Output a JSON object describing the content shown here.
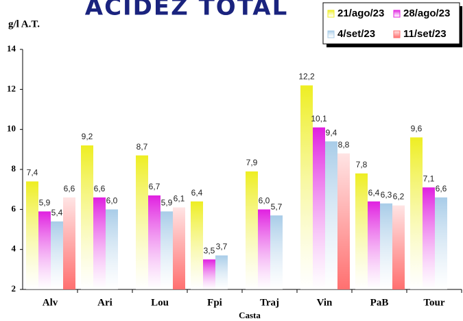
{
  "chart_data": {
    "type": "bar",
    "title": "ACIDEZ TOTAL",
    "y_label": "g/l A.T.",
    "x_label": "Casta",
    "categories": [
      "Alv",
      "Ari",
      "Lou",
      "Fpi",
      "Traj",
      "Vin",
      "PaB",
      "Tour"
    ],
    "series": [
      {
        "name": "21/ago/23",
        "color": "#eeee22",
        "values": [
          7.4,
          9.2,
          8.7,
          6.4,
          7.9,
          12.2,
          7.8,
          9.6
        ],
        "value_labels": [
          "7,4",
          "9,2",
          "8,7",
          "6,4",
          "7,9",
          "12,2",
          "7,8",
          "9,6"
        ]
      },
      {
        "name": "28/ago/23",
        "color": "#e020e0",
        "values": [
          5.9,
          6.6,
          6.7,
          3.5,
          6.0,
          10.1,
          6.4,
          7.1
        ],
        "value_labels": [
          "5,9",
          "6,6",
          "6,7",
          "3,5",
          "6,0",
          "10,1",
          "6,4",
          "7,1"
        ]
      },
      {
        "name": "4/set/23",
        "color": "#a8cce8",
        "values": [
          5.4,
          6.0,
          5.9,
          3.7,
          5.7,
          9.4,
          6.3,
          6.6
        ],
        "value_labels": [
          "5,4",
          "6,0",
          "5,9",
          "3,7",
          "5,7",
          "9,4",
          "6,3",
          "6,6"
        ]
      },
      {
        "name": "11/set/23",
        "color": "#ff7070",
        "values": [
          6.6,
          null,
          6.1,
          null,
          null,
          8.8,
          6.2,
          null
        ],
        "value_labels": [
          "6,6",
          null,
          "6,1",
          null,
          null,
          "8,8",
          "6,2",
          null
        ]
      }
    ],
    "ylim": [
      2,
      14
    ],
    "yticks": [
      2,
      4,
      6,
      8,
      10,
      12,
      14
    ],
    "legend": "top-right"
  }
}
